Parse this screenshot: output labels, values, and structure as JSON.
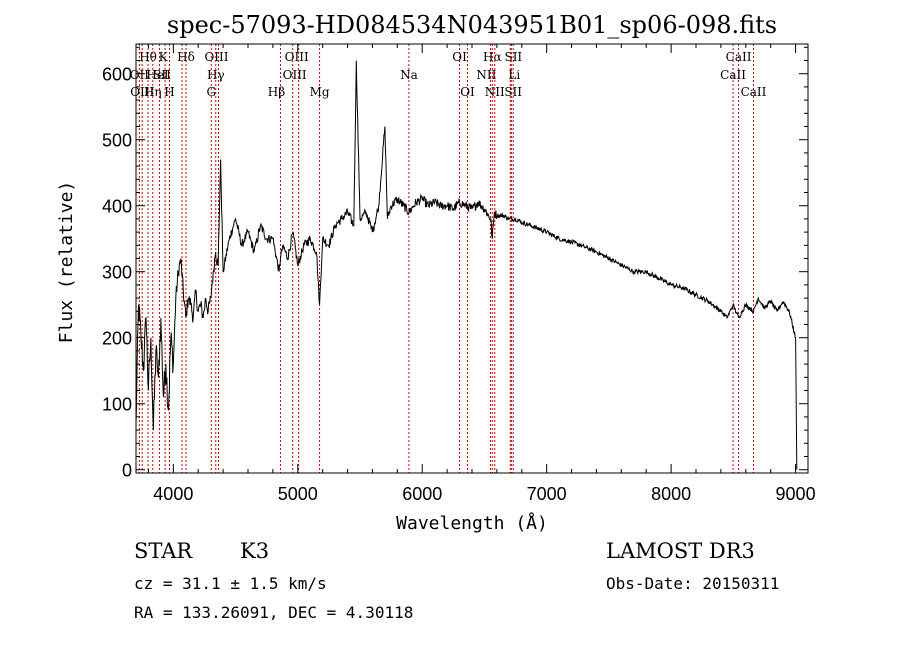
{
  "chart_data": {
    "type": "line",
    "title": "spec-57093-HD084534N043951B01_sp06-098.fits",
    "xlabel": "Wavelength (Å)",
    "ylabel": "Flux (relative)",
    "xlim": [
      3700,
      9100
    ],
    "ylim": [
      -5,
      645
    ],
    "xticks": [
      4000,
      5000,
      6000,
      7000,
      8000,
      9000
    ],
    "yticks": [
      0,
      100,
      200,
      300,
      400,
      500,
      600
    ],
    "line_color": "#000000",
    "marker_color": "#cc0000",
    "series": [
      {
        "name": "flux",
        "x": [
          3700,
          3720,
          3740,
          3760,
          3780,
          3800,
          3820,
          3840,
          3860,
          3880,
          3900,
          3920,
          3940,
          3960,
          3980,
          4000,
          4020,
          4040,
          4060,
          4080,
          4100,
          4120,
          4140,
          4160,
          4180,
          4200,
          4220,
          4240,
          4260,
          4280,
          4300,
          4320,
          4340,
          4360,
          4380,
          4400,
          4450,
          4500,
          4550,
          4600,
          4650,
          4700,
          4750,
          4800,
          4850,
          4861,
          4880,
          4920,
          4960,
          5000,
          5050,
          5100,
          5150,
          5175,
          5200,
          5250,
          5300,
          5350,
          5400,
          5450,
          5470,
          5500,
          5550,
          5600,
          5650,
          5700,
          5720,
          5750,
          5800,
          5850,
          5893,
          5950,
          6000,
          6050,
          6100,
          6150,
          6200,
          6250,
          6300,
          6350,
          6400,
          6450,
          6500,
          6550,
          6563,
          6580,
          6600,
          6650,
          6700,
          6750,
          6800,
          6900,
          7000,
          7100,
          7200,
          7300,
          7400,
          7500,
          7600,
          7700,
          7800,
          7900,
          8000,
          8100,
          8200,
          8300,
          8400,
          8450,
          8498,
          8542,
          8600,
          8662,
          8700,
          8750,
          8800,
          8850,
          8900,
          8950,
          9000,
          9010
        ],
        "y": [
          70,
          250,
          200,
          150,
          230,
          120,
          200,
          60,
          180,
          140,
          230,
          110,
          160,
          90,
          200,
          160,
          260,
          300,
          320,
          270,
          230,
          260,
          250,
          230,
          270,
          240,
          250,
          230,
          260,
          240,
          260,
          300,
          330,
          310,
          470,
          300,
          350,
          380,
          340,
          360,
          330,
          370,
          350,
          350,
          300,
          320,
          340,
          320,
          360,
          310,
          340,
          350,
          330,
          250,
          350,
          340,
          370,
          380,
          390,
          370,
          620,
          380,
          390,
          360,
          400,
          520,
          380,
          400,
          410,
          400,
          390,
          405,
          410,
          400,
          405,
          400,
          400,
          395,
          405,
          400,
          395,
          405,
          395,
          380,
          350,
          390,
          385,
          385,
          380,
          380,
          375,
          368,
          360,
          350,
          345,
          338,
          330,
          320,
          310,
          300,
          300,
          290,
          280,
          275,
          265,
          255,
          240,
          230,
          250,
          230,
          250,
          240,
          260,
          245,
          255,
          240,
          255,
          240,
          200,
          0
        ]
      }
    ],
    "lines": [
      {
        "name": "OII",
        "wl": 3727,
        "row": 1,
        "dx": 0
      },
      {
        "name": "Hθ",
        "wl": 3797,
        "row": 0,
        "dx": 0
      },
      {
        "name": "OIII",
        "wl": 3750,
        "row": 2,
        "dx": 0
      },
      {
        "name": "Hη",
        "wl": 3835,
        "row": 2,
        "dx": 0
      },
      {
        "name": "HeI",
        "wl": 3889,
        "row": 1,
        "dx": -2
      },
      {
        "name": "K",
        "wl": 3934,
        "row": 0,
        "dx": -2
      },
      {
        "name": "SII",
        "wl": 4070,
        "row": 1,
        "dx": -20
      },
      {
        "name": "H",
        "wl": 3969,
        "row": 2,
        "dx": 0
      },
      {
        "name": "Hδ",
        "wl": 4102,
        "row": 0,
        "dx": 0
      },
      {
        "name": "OIII",
        "wl": 4363,
        "row": 0,
        "dx": -2
      },
      {
        "name": "Hγ",
        "wl": 4341,
        "row": 1,
        "dx": 0
      },
      {
        "name": "G",
        "wl": 4305,
        "row": 2,
        "dx": 0
      },
      {
        "name": "Hβ",
        "wl": 4861,
        "row": 2,
        "dx": -4
      },
      {
        "name": "OIII",
        "wl": 4959,
        "row": 0,
        "dx": 4
      },
      {
        "name": "OIII",
        "wl": 5007,
        "row": 1,
        "dx": -4
      },
      {
        "name": "Mg",
        "wl": 5175,
        "row": 2,
        "dx": 0
      },
      {
        "name": "Na",
        "wl": 5893,
        "row": 1,
        "dx": 0
      },
      {
        "name": "OI",
        "wl": 6300,
        "row": 0,
        "dx": 0
      },
      {
        "name": "OI",
        "wl": 6364,
        "row": 2,
        "dx": 0
      },
      {
        "name": "Hα",
        "wl": 6563,
        "row": 0,
        "dx": 0
      },
      {
        "name": "NII",
        "wl": 6548,
        "row": 1,
        "dx": -4
      },
      {
        "name": "NII",
        "wl": 6583,
        "row": 2,
        "dx": 0
      },
      {
        "name": "SII",
        "wl": 6716,
        "row": 0,
        "dx": 2
      },
      {
        "name": "Li",
        "wl": 6708,
        "row": 1,
        "dx": 4
      },
      {
        "name": "SII",
        "wl": 6731,
        "row": 2,
        "dx": 0
      },
      {
        "name": "CaII",
        "wl": 8542,
        "row": 0,
        "dx": 0
      },
      {
        "name": "CaII",
        "wl": 8498,
        "row": 1,
        "dx": 0
      },
      {
        "name": "CaII",
        "wl": 8662,
        "row": 2,
        "dx": 0
      }
    ]
  },
  "info": {
    "object_class": "STAR",
    "subclass": "K3",
    "survey": "LAMOST DR3",
    "redshift": "cz = 31.1 ± 1.5 km/s",
    "obs_date": "Obs-Date: 20150311",
    "coords": "RA = 133.26091, DEC =   4.30118"
  }
}
